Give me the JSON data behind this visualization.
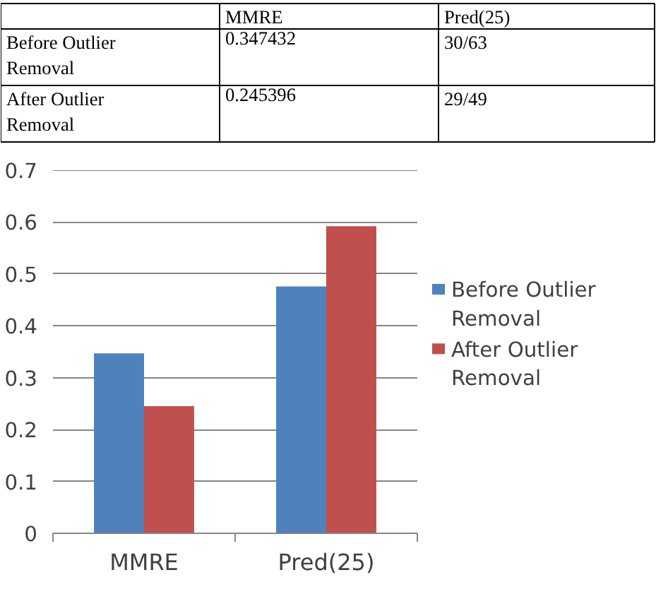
{
  "chart_data": {
    "type": "bar",
    "categories": [
      "MMRE",
      "Pred(25)"
    ],
    "series": [
      {
        "name": "Before Outlier Removal",
        "color": "#4f81bd",
        "values": [
          0.347,
          0.476
        ]
      },
      {
        "name": "After Outlier Removal",
        "color": "#c0504d",
        "values": [
          0.245,
          0.592
        ]
      }
    ],
    "annotations": [
      "0.347432",
      "30/63",
      "0.245396",
      "29/49"
    ],
    "ylim": [
      0,
      0.7
    ],
    "yticks": [
      {
        "value": 0,
        "label": "0"
      },
      0.1,
      0.2,
      0.3,
      0.4,
      0.5,
      0.6,
      0.7
    ],
    "grid": "y",
    "legend": "right"
  }
}
